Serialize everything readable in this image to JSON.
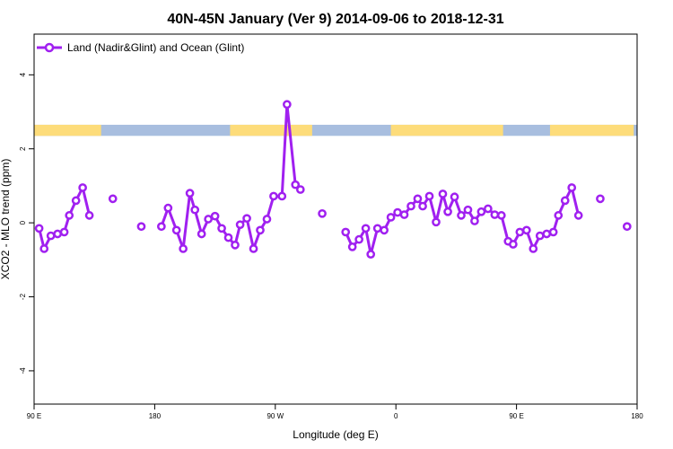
{
  "chart_data": {
    "type": "line",
    "title": "40N-45N January (Ver 9)   2014-09-06 to 2018-12-31",
    "xlabel": "Longitude (deg E)",
    "ylabel": "XCO2 - MLO trend (ppm)",
    "xlim": [
      90,
      450
    ],
    "ylim": [
      -4.9,
      5.1
    ],
    "x_ticks": [
      {
        "value": 90,
        "label": "90 E"
      },
      {
        "value": 162,
        "label": "180"
      },
      {
        "value": 234,
        "label": "90 W"
      },
      {
        "value": 306,
        "label": "0"
      },
      {
        "value": 378,
        "label": "90 E"
      },
      {
        "value": 450,
        "label": "180"
      }
    ],
    "y_ticks": [
      {
        "value": -4,
        "label": "-4"
      },
      {
        "value": -2,
        "label": "-2"
      },
      {
        "value": 0,
        "label": "0"
      },
      {
        "value": 2,
        "label": "2"
      },
      {
        "value": 4,
        "label": "4"
      }
    ],
    "grid": false,
    "legend_position": "top-left",
    "series_color": "#a020f0",
    "land_color": "#fddc7a",
    "ocean_color": "#a8bedf",
    "land_ocean_band": {
      "ymin": 2.35,
      "ymax": 2.65,
      "land_ranges": [
        [
          90,
          130
        ],
        [
          207,
          256
        ],
        [
          303,
          370
        ],
        [
          398,
          448
        ]
      ]
    },
    "series": [
      {
        "name": "Land (Nadir&Glint) and Ocean (Glint)",
        "segments": [
          [
            [
              93,
              -0.15
            ],
            [
              96,
              -0.7
            ],
            [
              100,
              -0.35
            ],
            [
              104,
              -0.3
            ],
            [
              108,
              -0.25
            ],
            [
              111,
              0.2
            ],
            [
              115,
              0.6
            ],
            [
              119,
              0.95
            ],
            [
              123,
              0.2
            ]
          ],
          [
            [
              137,
              0.65
            ]
          ],
          [
            [
              154,
              -0.1
            ]
          ],
          [
            [
              166,
              -0.1
            ],
            [
              170,
              0.4
            ],
            [
              175,
              -0.2
            ],
            [
              179,
              -0.7
            ],
            [
              183,
              0.8
            ],
            [
              186,
              0.35
            ],
            [
              190,
              -0.3
            ],
            [
              194,
              0.1
            ],
            [
              198,
              0.18
            ],
            [
              202,
              -0.15
            ],
            [
              206,
              -0.4
            ],
            [
              210,
              -0.6
            ],
            [
              213,
              -0.05
            ],
            [
              217,
              0.12
            ],
            [
              221,
              -0.7
            ],
            [
              225,
              -0.2
            ],
            [
              229,
              0.1
            ],
            [
              233,
              0.72
            ],
            [
              238,
              0.72
            ],
            [
              241,
              3.2
            ],
            [
              246,
              1.03
            ],
            [
              249,
              0.9
            ]
          ],
          [
            [
              262,
              0.25
            ]
          ],
          [
            [
              276,
              -0.25
            ],
            [
              280,
              -0.65
            ],
            [
              284,
              -0.45
            ],
            [
              288,
              -0.15
            ],
            [
              291,
              -0.85
            ],
            [
              295,
              -0.15
            ],
            [
              299,
              -0.2
            ],
            [
              303,
              0.15
            ],
            [
              307,
              0.28
            ],
            [
              311,
              0.22
            ],
            [
              315,
              0.45
            ],
            [
              319,
              0.65
            ],
            [
              322,
              0.45
            ],
            [
              326,
              0.72
            ],
            [
              330,
              0.02
            ],
            [
              334,
              0.78
            ],
            [
              337,
              0.3
            ],
            [
              341,
              0.7
            ],
            [
              345,
              0.2
            ],
            [
              349,
              0.35
            ],
            [
              353,
              0.05
            ],
            [
              357,
              0.3
            ],
            [
              361,
              0.38
            ],
            [
              365,
              0.22
            ],
            [
              369,
              0.2
            ],
            [
              373,
              -0.5
            ],
            [
              376,
              -0.58
            ],
            [
              380,
              -0.25
            ],
            [
              384,
              -0.2
            ],
            [
              388,
              -0.7
            ],
            [
              392,
              -0.35
            ],
            [
              396,
              -0.3
            ],
            [
              400,
              -0.25
            ],
            [
              403,
              0.2
            ],
            [
              407,
              0.6
            ],
            [
              411,
              0.95
            ],
            [
              415,
              0.2
            ]
          ],
          [
            [
              428,
              0.65
            ]
          ],
          [
            [
              444,
              -0.1
            ]
          ]
        ]
      }
    ]
  }
}
